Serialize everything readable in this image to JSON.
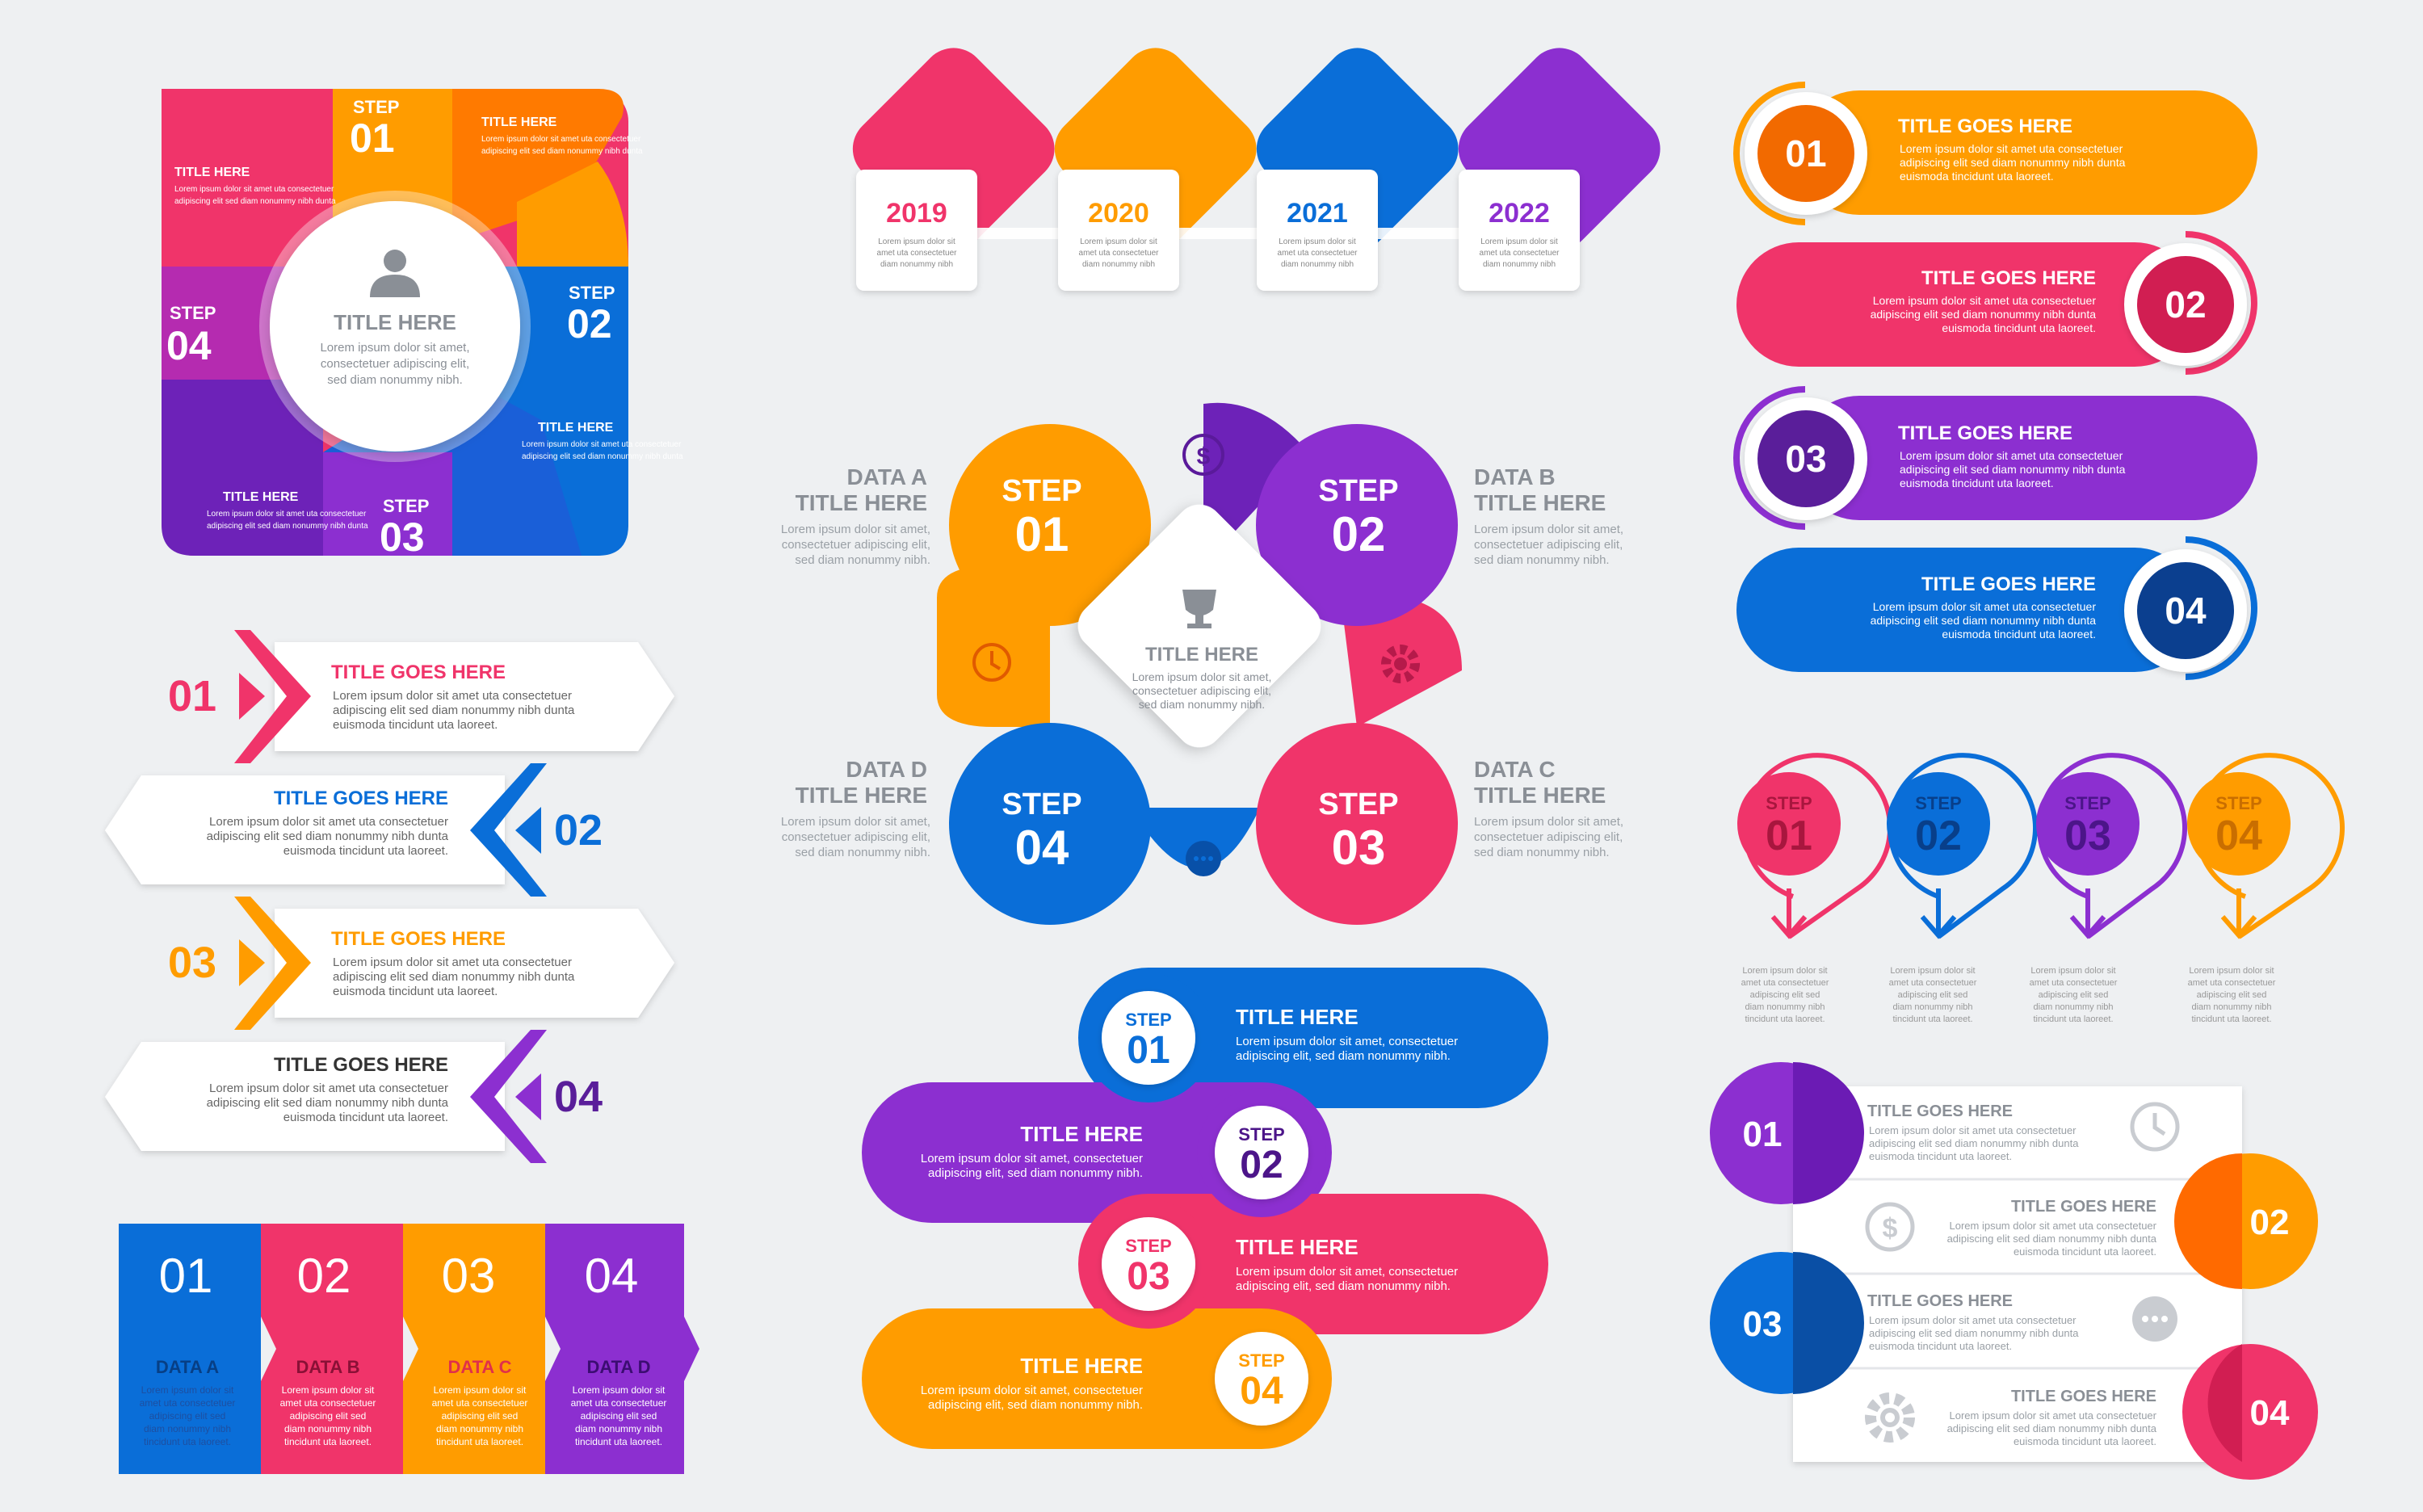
{
  "colors": {
    "pink": "#f0346a",
    "orange": "#ff9c00",
    "blue": "#0a6ed8",
    "purple": "#8c2fd0",
    "grey": "#8a8f96",
    "text": "#333333"
  },
  "lorem": {
    "short": "Lorem ipsum dolor sit amet, consectetuer adipiscing elit, sed diam nonummy nibh.",
    "l1": "Lorem ipsum dolor sit amet uta consectetuer",
    "l2": "adipiscing elit sed diam nonummy nibh dunta",
    "l3": "euismoda tincidunt uta laoreet.",
    "tiny1": "Lorem ipsum dolor sit",
    "tiny2": "amet uta consectetuer",
    "tiny3": "adipiscing elit sed",
    "tiny4": "diam nonummy nibh",
    "tiny5": "tincidunt uta laoreet.",
    "a1": "Lorem ipsum dolor sit amet,",
    "a2": "consectetuer adipiscing elit,",
    "a3": "sed diam nonummy nibh."
  },
  "circle_wheel": {
    "center_title": "TITLE HERE",
    "center_text_1": "Lorem ipsum dolor sit amet,",
    "center_text_2": "consectetuer adipiscing elit,",
    "center_text_3": "sed diam nonummy nibh.",
    "step_word": "STEP",
    "steps": [
      "01",
      "02",
      "03",
      "04"
    ],
    "side_title": "TITLE HERE"
  },
  "timeline": {
    "years": [
      "2019",
      "2020",
      "2021",
      "2022"
    ]
  },
  "clover": {
    "steps": [
      {
        "word": "STEP",
        "num": "01"
      },
      {
        "word": "STEP",
        "num": "02"
      },
      {
        "word": "STEP",
        "num": "03"
      },
      {
        "word": "STEP",
        "num": "04"
      }
    ],
    "center_title": "TITLE HERE",
    "labels": [
      {
        "a": "DATA A",
        "b": "TITLE HERE"
      },
      {
        "a": "DATA B",
        "b": "TITLE HERE"
      },
      {
        "a": "DATA C",
        "b": "TITLE HERE"
      },
      {
        "a": "DATA D",
        "b": "TITLE HERE"
      }
    ]
  },
  "pill_list": {
    "items": [
      {
        "num": "01",
        "title": "TITLE GOES HERE"
      },
      {
        "num": "02",
        "title": "TITLE GOES HERE"
      },
      {
        "num": "03",
        "title": "TITLE GOES HERE"
      },
      {
        "num": "04",
        "title": "TITLE GOES HERE"
      }
    ]
  },
  "arrow_list": {
    "items": [
      {
        "num": "01",
        "title": "TITLE GOES HERE"
      },
      {
        "num": "02",
        "title": "TITLE GOES HERE"
      },
      {
        "num": "03",
        "title": "TITLE GOES HERE"
      },
      {
        "num": "04",
        "title": "TITLE GOES HERE"
      }
    ]
  },
  "hook_steps": {
    "items": [
      {
        "word": "STEP",
        "num": "01"
      },
      {
        "word": "STEP",
        "num": "02"
      },
      {
        "word": "STEP",
        "num": "03"
      },
      {
        "word": "STEP",
        "num": "04"
      }
    ]
  },
  "columns": {
    "items": [
      {
        "num": "01",
        "label": "DATA A"
      },
      {
        "num": "02",
        "label": "DATA B"
      },
      {
        "num": "03",
        "label": "DATA C"
      },
      {
        "num": "04",
        "label": "DATA D"
      }
    ]
  },
  "snake": {
    "items": [
      {
        "word": "STEP",
        "num": "01",
        "title": "TITLE HERE"
      },
      {
        "word": "STEP",
        "num": "02",
        "title": "TITLE HERE"
      },
      {
        "word": "STEP",
        "num": "03",
        "title": "TITLE HERE"
      },
      {
        "word": "STEP",
        "num": "04",
        "title": "TITLE HERE"
      }
    ],
    "text1": "Lorem ipsum dolor sit amet, consectetuer",
    "text2": "adipiscing elit, sed diam nonummy nibh."
  },
  "card_list": {
    "items": [
      {
        "num": "01",
        "title": "TITLE GOES HERE"
      },
      {
        "num": "02",
        "title": "TITLE GOES HERE"
      },
      {
        "num": "03",
        "title": "TITLE GOES HERE"
      },
      {
        "num": "04",
        "title": "TITLE GOES HERE"
      }
    ]
  }
}
